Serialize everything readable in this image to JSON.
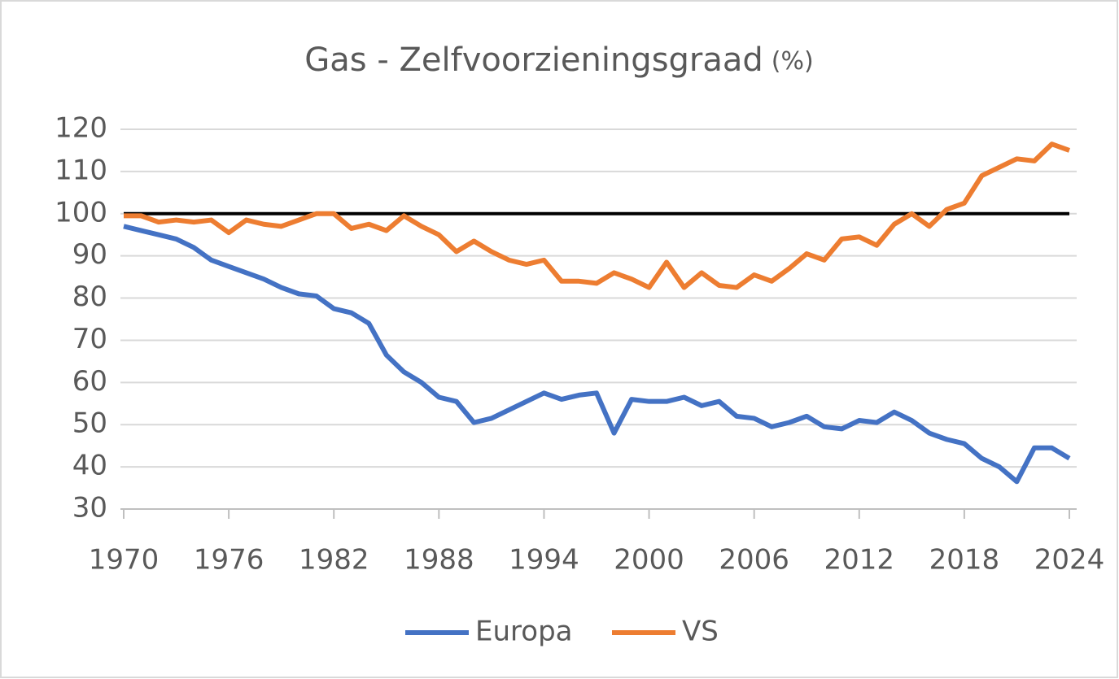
{
  "chart_data": {
    "type": "line",
    "title": "Gas - Zelfvoorzieningsgraad",
    "title_unit": "(%)",
    "x": [
      1970,
      1971,
      1972,
      1973,
      1974,
      1975,
      1976,
      1977,
      1978,
      1979,
      1980,
      1981,
      1982,
      1983,
      1984,
      1985,
      1986,
      1987,
      1988,
      1989,
      1990,
      1991,
      1992,
      1993,
      1994,
      1995,
      1996,
      1997,
      1998,
      1999,
      2000,
      2001,
      2002,
      2003,
      2004,
      2005,
      2006,
      2007,
      2008,
      2009,
      2010,
      2011,
      2012,
      2013,
      2014,
      2015,
      2016,
      2017,
      2018,
      2019,
      2020,
      2021,
      2022,
      2023,
      2024
    ],
    "series": [
      {
        "name": "Europa",
        "color": "#4472c4",
        "values": [
          97,
          96,
          95,
          94,
          92,
          89,
          87.5,
          86,
          84.5,
          82.5,
          81,
          80.5,
          77.5,
          76.5,
          74,
          66.5,
          62.5,
          60,
          56.5,
          55.5,
          50.5,
          51.5,
          53.5,
          55.5,
          57.5,
          56,
          57,
          57.5,
          48,
          56,
          55.5,
          55.5,
          56.5,
          54.5,
          55.5,
          52,
          51.5,
          49.5,
          50.5,
          52,
          49.5,
          49,
          51,
          50.5,
          53,
          51,
          48,
          46.5,
          45.5,
          42,
          40,
          36.5,
          44.5,
          44.5,
          42
        ]
      },
      {
        "name": "VS",
        "color": "#ed7d31",
        "values": [
          99.5,
          99.5,
          98,
          98.5,
          98,
          98.5,
          95.5,
          98.5,
          97.5,
          97,
          98.5,
          100,
          100,
          96.5,
          97.5,
          96,
          99.5,
          97,
          95,
          91,
          93.5,
          91,
          89,
          88,
          89,
          84,
          84,
          83.5,
          86,
          84.5,
          82.5,
          88.5,
          82.5,
          86,
          83,
          82.5,
          85.5,
          84,
          87,
          90.5,
          89,
          94,
          94.5,
          92.5,
          97.5,
          100,
          97,
          101,
          102.5,
          109,
          111,
          113,
          112.5,
          116.5,
          115
        ]
      }
    ],
    "reference_line": 100,
    "xlim": [
      1970,
      2024
    ],
    "xticks": [
      1970,
      1976,
      1982,
      1988,
      1994,
      2000,
      2006,
      2012,
      2018,
      2024
    ],
    "ylim": [
      30,
      120
    ],
    "yticks": [
      30,
      40,
      50,
      60,
      70,
      80,
      90,
      100,
      110,
      120
    ],
    "grid": true,
    "legend": "bottom"
  }
}
